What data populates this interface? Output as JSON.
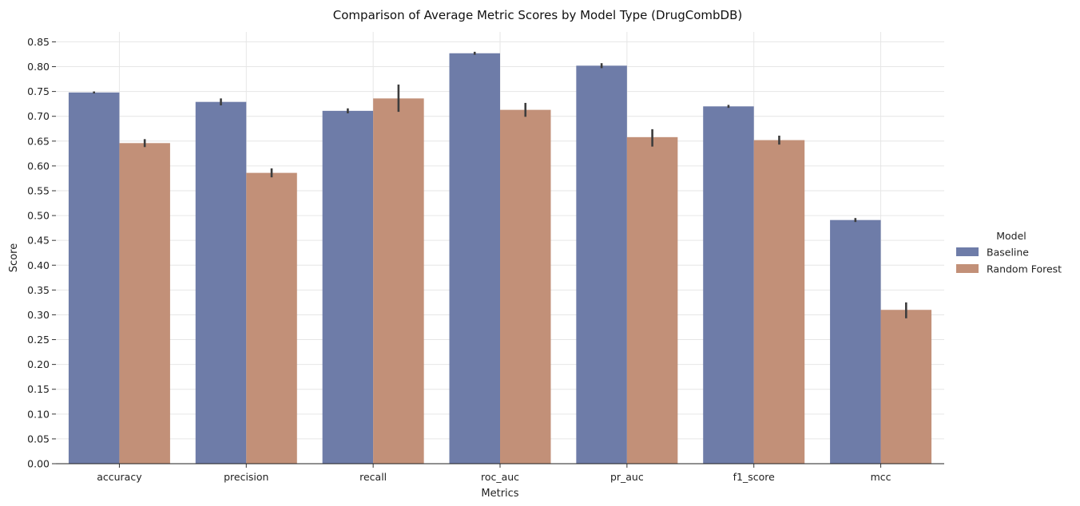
{
  "chart_data": {
    "type": "bar",
    "title": "Comparison of Average Metric Scores by Model Type (DrugCombDB)",
    "xlabel": "Metrics",
    "ylabel": "Score",
    "ylim": [
      0,
      0.87
    ],
    "yticks": [
      "0.00",
      "0.05",
      "0.10",
      "0.15",
      "0.20",
      "0.25",
      "0.30",
      "0.35",
      "0.40",
      "0.45",
      "0.50",
      "0.55",
      "0.60",
      "0.65",
      "0.70",
      "0.75",
      "0.80",
      "0.85"
    ],
    "grid": true,
    "categories": [
      "accuracy",
      "precision",
      "recall",
      "roc_auc",
      "pr_auc",
      "f1_score",
      "mcc"
    ],
    "legend": {
      "title": "Model",
      "placement": "right"
    },
    "series": [
      {
        "name": "Baseline",
        "color": "#6e7ca8",
        "values": [
          0.748,
          0.729,
          0.711,
          0.827,
          0.802,
          0.72,
          0.491
        ],
        "err_low": [
          0.746,
          0.722,
          0.706,
          0.824,
          0.797,
          0.717,
          0.487
        ],
        "err_high": [
          0.75,
          0.736,
          0.716,
          0.83,
          0.807,
          0.723,
          0.495
        ]
      },
      {
        "name": "Random Forest",
        "color": "#c29078",
        "values": [
          0.646,
          0.586,
          0.736,
          0.713,
          0.658,
          0.652,
          0.31
        ],
        "err_low": [
          0.638,
          0.577,
          0.709,
          0.699,
          0.639,
          0.643,
          0.293
        ],
        "err_high": [
          0.654,
          0.595,
          0.764,
          0.727,
          0.674,
          0.661,
          0.325
        ]
      }
    ]
  }
}
